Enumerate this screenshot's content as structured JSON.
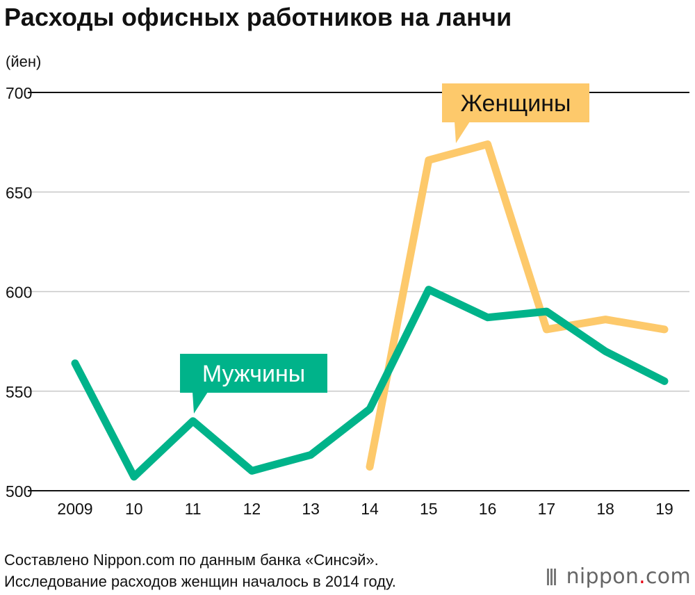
{
  "title": "Расходы офисных работников на ланчи",
  "unit_label": "(йен)",
  "footer": {
    "line1": "Составлено Nippon.com по данным банка «Синсэй».",
    "line2": "Исследование расходов женщин началось в 2014 году."
  },
  "logo": {
    "text": "nippon",
    "dot": ".",
    "tld": "com"
  },
  "chart_data": {
    "type": "line",
    "title": "Расходы офисных работников на ланчи",
    "ylabel": "(йен)",
    "xlabel": "",
    "categories": [
      "2009",
      "10",
      "11",
      "12",
      "13",
      "14",
      "15",
      "16",
      "17",
      "18",
      "19"
    ],
    "ylim": [
      500,
      700
    ],
    "yticks": [
      500,
      550,
      600,
      650,
      700
    ],
    "grid": true,
    "series": [
      {
        "name": "Мужчины",
        "color": "#00b38a",
        "values": [
          564,
          507,
          535,
          510,
          518,
          541,
          601,
          587,
          590,
          570,
          555
        ]
      },
      {
        "name": "Женщины",
        "color": "#fdc96b",
        "values": [
          null,
          null,
          null,
          null,
          null,
          512,
          666,
          674,
          581,
          586,
          581
        ]
      }
    ],
    "legend": "inline callout labels"
  }
}
